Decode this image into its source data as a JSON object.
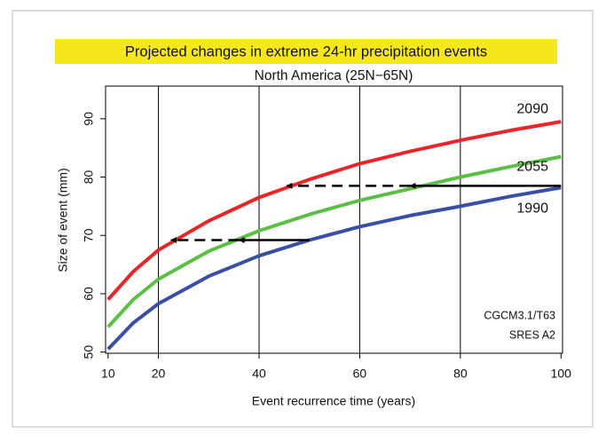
{
  "chart_data": {
    "type": "line",
    "title": "Projected changes in extreme 24-hr precipitation events",
    "subtitle": "North America (25N−65N)",
    "x_label": "Event recurrence time (years)",
    "y_label": "Size of event (mm)",
    "x": [
      10,
      15,
      20,
      30,
      40,
      50,
      60,
      70,
      80,
      90,
      100
    ],
    "series": [
      {
        "name": "2090",
        "color": "#e8262a",
        "values": [
          59,
          63.8,
          67.5,
          72.5,
          76.5,
          79.6,
          82.3,
          84.4,
          86.3,
          88,
          89.5
        ]
      },
      {
        "name": "2055",
        "color": "#5bbf45",
        "values": [
          54.3,
          59,
          62.5,
          67.3,
          70.8,
          73.6,
          76,
          78,
          80,
          81.8,
          83.5
        ]
      },
      {
        "name": "1990",
        "color": "#3a4fa3",
        "values": [
          50.5,
          55,
          58.3,
          63,
          66.5,
          69.2,
          71.5,
          73.4,
          75,
          76.7,
          78.2
        ]
      }
    ],
    "arrows": [
      {
        "x": [
          100,
          70
        ],
        "y": 78.5,
        "style": "solid"
      },
      {
        "x": [
          70,
          45.5
        ],
        "y": 78.5,
        "style": "dashed"
      },
      {
        "x": [
          50,
          36
        ],
        "y": 69.2,
        "style": "solid"
      },
      {
        "x": [
          36,
          22.5
        ],
        "y": 69.2,
        "style": "dashed"
      }
    ],
    "annotations": [
      "CGCM3.1/T63",
      "SRES A2"
    ],
    "xlim": [
      9.5,
      100.3
    ],
    "ylim": [
      49.8,
      95.6
    ],
    "xticks": [
      10,
      20,
      40,
      60,
      80,
      100
    ],
    "yticks": [
      50,
      60,
      70,
      80,
      90
    ],
    "xgrid": [
      20,
      40,
      60,
      80
    ]
  }
}
